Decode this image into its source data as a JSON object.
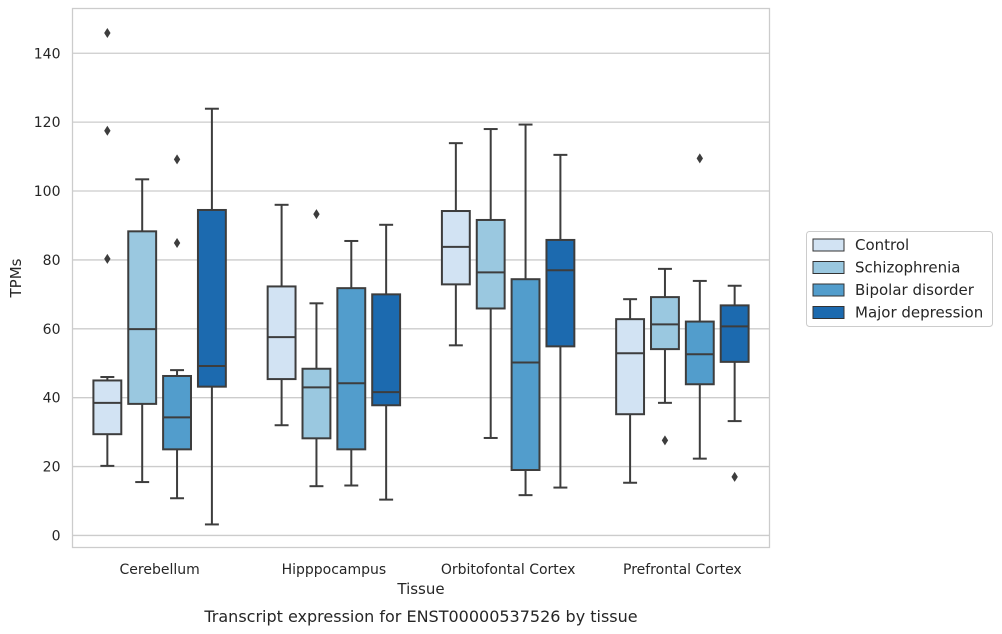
{
  "chart_data": {
    "type": "boxplot",
    "xlabel": "Tissue",
    "ylabel": "TPMs",
    "caption": "Transcript expression for ENST00000537526 by tissue",
    "ylim": [
      -3.5,
      153
    ],
    "yticks": [
      0,
      20,
      40,
      60,
      80,
      100,
      120,
      140
    ],
    "grid": "horizontal",
    "legend_position": "right",
    "categories": [
      "Cerebellum",
      "Hipppocampus",
      "Orbitofontal Cortex",
      "Prefrontal Cortex"
    ],
    "series": [
      {
        "name": "Control",
        "color": "#d2e3f3",
        "boxes": [
          {
            "whislo": 20.2,
            "q1": 29.4,
            "med": 38.5,
            "q3": 45,
            "whishi": 46,
            "fliers": [
              80.3,
              117.5,
              145.9
            ]
          },
          {
            "whislo": 32,
            "q1": 45.4,
            "med": 57.6,
            "q3": 72.3,
            "whishi": 96,
            "fliers": []
          },
          {
            "whislo": 55.2,
            "q1": 72.9,
            "med": 83.8,
            "q3": 94.2,
            "whishi": 113.9,
            "fliers": []
          },
          {
            "whislo": 15.3,
            "q1": 35.2,
            "med": 52.9,
            "q3": 62.8,
            "whishi": 68.6,
            "fliers": []
          }
        ]
      },
      {
        "name": "Schizophrenia",
        "color": "#9ac8e0",
        "boxes": [
          {
            "whislo": 15.5,
            "q1": 38.2,
            "med": 59.9,
            "q3": 88.3,
            "whishi": 103.4,
            "fliers": []
          },
          {
            "whislo": 14.3,
            "q1": 28.2,
            "med": 43,
            "q3": 48.4,
            "whishi": 67.4,
            "fliers": [
              93.3
            ]
          },
          {
            "whislo": 28.3,
            "q1": 65.9,
            "med": 76.4,
            "q3": 91.6,
            "whishi": 118,
            "fliers": []
          },
          {
            "whislo": 38.5,
            "q1": 54.1,
            "med": 61.3,
            "q3": 69.2,
            "whishi": 77.4,
            "fliers": [
              27.6
            ]
          }
        ]
      },
      {
        "name": "Bipolar disorder",
        "color": "#529dcc",
        "boxes": [
          {
            "whislo": 10.8,
            "q1": 25,
            "med": 34.3,
            "q3": 46.3,
            "whishi": 48,
            "fliers": [
              84.9,
              109.2
            ]
          },
          {
            "whislo": 14.5,
            "q1": 25,
            "med": 44.2,
            "q3": 71.8,
            "whishi": 85.5,
            "fliers": []
          },
          {
            "whislo": 11.7,
            "q1": 19,
            "med": 50.2,
            "q3": 74.4,
            "whishi": 119.3,
            "fliers": []
          },
          {
            "whislo": 22.3,
            "q1": 43.9,
            "med": 52.6,
            "q3": 62.1,
            "whishi": 73.9,
            "fliers": [
              109.5
            ]
          }
        ]
      },
      {
        "name": "Major depression",
        "color": "#1c6aaf",
        "boxes": [
          {
            "whislo": 3.2,
            "q1": 43.2,
            "med": 49.2,
            "q3": 94.5,
            "whishi": 123.9,
            "fliers": []
          },
          {
            "whislo": 10.4,
            "q1": 37.8,
            "med": 41.6,
            "q3": 70,
            "whishi": 90.2,
            "fliers": []
          },
          {
            "whislo": 13.9,
            "q1": 54.9,
            "med": 77,
            "q3": 85.8,
            "whishi": 110.5,
            "fliers": []
          },
          {
            "whislo": 33.2,
            "q1": 50.4,
            "med": 60.7,
            "q3": 66.8,
            "whishi": 72.5,
            "fliers": [
              17
            ]
          }
        ]
      }
    ]
  }
}
